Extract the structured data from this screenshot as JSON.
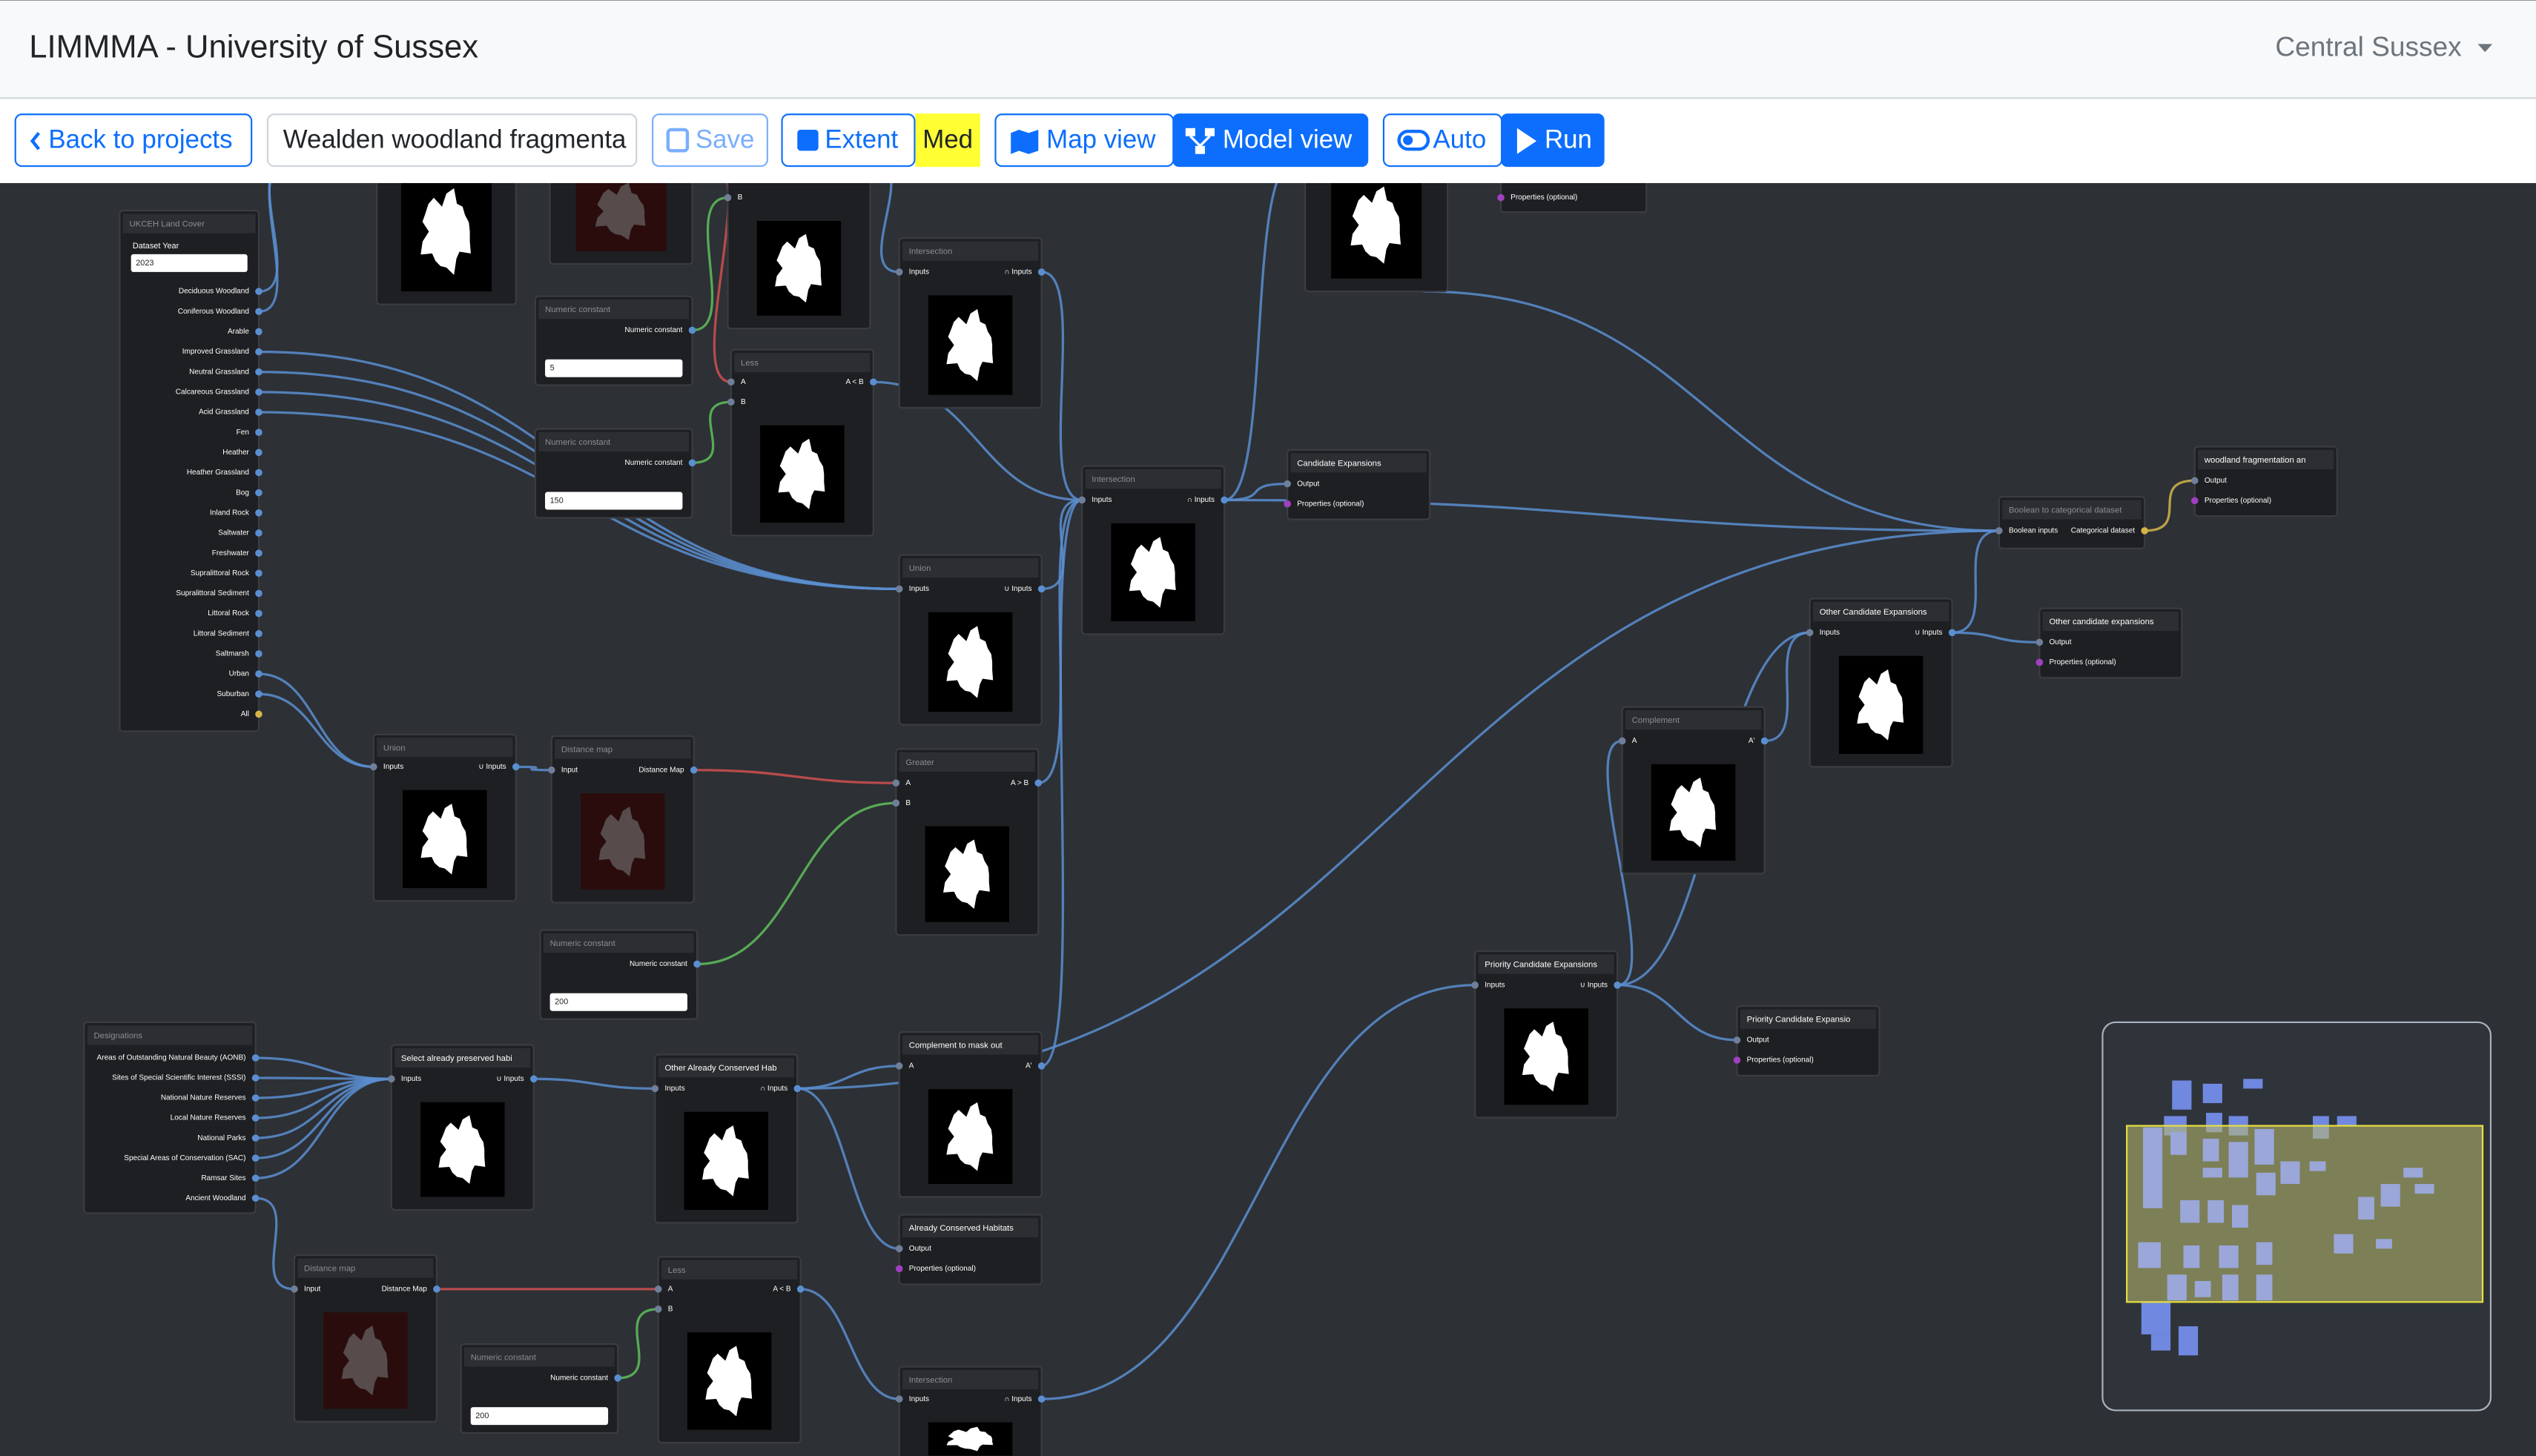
{
  "header": {
    "title": "LIMMMA - University of Sussex",
    "region": "Central Sussex"
  },
  "toolbar": {
    "back": "Back to projects",
    "project_name": "Wealden woodland fragmenta",
    "save": "Save",
    "extent": "Extent",
    "quality": "Med",
    "map_view": "Map view",
    "model_view": "Model view",
    "auto": "Auto",
    "run": "Run"
  },
  "nodes": [
    {
      "title": "UKCEH Land Cover",
      "field_label": "Dataset Year",
      "value": "2023",
      "inputs": [],
      "outputs": [
        "Deciduous Woodland",
        "Coniferous Woodland",
        "Arable",
        "Improved Grassland",
        "Neutral Grassland",
        "Calcareous Grassland",
        "Acid Grassland",
        "Fen",
        "Heather",
        "Heather Grassland",
        "Bog",
        "Inland Rock",
        "Saltwater",
        "Freshwater",
        "Supralittoral Rock",
        "Supralittoral Sediment",
        "Littoral Rock",
        "Littoral Sediment",
        "Saltmarsh",
        "Urban",
        "Suburban",
        "All"
      ]
    },
    {
      "inputs": [
        "B"
      ],
      "outputs": []
    },
    {
      "title": "Numeric constant",
      "inputs": [],
      "outputs": [
        "Numeric constant"
      ],
      "value": "5"
    },
    {
      "title": "Less",
      "inputs": [
        "A",
        "B"
      ],
      "outputs": [
        "A < B"
      ]
    },
    {
      "title": "Intersection",
      "inputs": [
        "Inputs"
      ],
      "outputs": [
        "∩ Inputs"
      ]
    },
    {
      "title": "Numeric constant",
      "inputs": [],
      "outputs": [
        "Numeric constant"
      ],
      "value": "150"
    },
    {
      "title": "Intersection",
      "inputs": [
        "Inputs"
      ],
      "outputs": [
        "∩ Inputs"
      ]
    },
    {
      "title": "Candidate Expansions",
      "inputs": [
        "Output",
        "Properties (optional)"
      ],
      "outputs": []
    },
    {
      "inputs": [
        "Properties (optional)"
      ],
      "outputs": []
    },
    {
      "title": "Union",
      "inputs": [
        "Inputs"
      ],
      "outputs": [
        "∪ Inputs"
      ]
    },
    {
      "title": "Union",
      "inputs": [
        "Inputs"
      ],
      "outputs": [
        "∪ Inputs"
      ]
    },
    {
      "title": "Distance map",
      "inputs": [
        "Input"
      ],
      "outputs": [
        "Distance Map"
      ]
    },
    {
      "title": "Greater",
      "inputs": [
        "A",
        "B"
      ],
      "outputs": [
        "A > B"
      ]
    },
    {
      "title": "Numeric constant",
      "inputs": [],
      "outputs": [
        "Numeric constant"
      ],
      "value": "200"
    },
    {
      "title": "Designations",
      "inputs": [],
      "outputs": [
        "Areas of Outstanding Natural Beauty (AONB)",
        "Sites of Special Scientific Interest (SSSI)",
        "National Nature Reserves",
        "Local Nature Reserves",
        "National Parks",
        "Special Areas of Conservation (SAC)",
        "Ramsar Sites",
        "Ancient Woodland"
      ]
    },
    {
      "title": "Select already preserved habi",
      "inputs": [
        "Inputs"
      ],
      "outputs": [
        "∪ Inputs"
      ]
    },
    {
      "title": "Other Already Conserved Hab",
      "inputs": [
        "Inputs"
      ],
      "outputs": [
        "∩ Inputs"
      ]
    },
    {
      "title": "Complement to mask out",
      "inputs": [
        "A"
      ],
      "outputs": [
        "A'"
      ]
    },
    {
      "title": "Already Conserved Habitats",
      "inputs": [
        "Output",
        "Properties (optional)"
      ],
      "outputs": []
    },
    {
      "title": "Distance map",
      "inputs": [
        "Input"
      ],
      "outputs": [
        "Distance Map"
      ]
    },
    {
      "title": "Less",
      "inputs": [
        "A",
        "B"
      ],
      "outputs": [
        "A < B"
      ]
    },
    {
      "title": "Numeric constant",
      "inputs": [],
      "outputs": [
        "Numeric constant"
      ],
      "value": "200"
    },
    {
      "title": "Intersection",
      "inputs": [
        "Inputs"
      ],
      "outputs": [
        "∩ Inputs"
      ]
    },
    {
      "title": "Priority Candidate Expansions",
      "inputs": [
        "Inputs"
      ],
      "outputs": [
        "∪ Inputs"
      ]
    },
    {
      "title": "Priority Candidate Expansio",
      "inputs": [
        "Output",
        "Properties (optional)"
      ],
      "outputs": []
    },
    {
      "title": "Complement",
      "inputs": [
        "A"
      ],
      "outputs": [
        "A'"
      ]
    },
    {
      "title": "Other Candidate Expansions",
      "inputs": [
        "Inputs"
      ],
      "outputs": [
        "∪ Inputs"
      ]
    },
    {
      "title": "Boolean to categorical dataset",
      "inputs": [
        "Boolean inputs"
      ],
      "outputs": [
        "Categorical dataset"
      ]
    },
    {
      "title": "woodland fragmentation an",
      "inputs": [
        "Output",
        "Properties (optional)"
      ],
      "outputs": []
    },
    {
      "title": "Other candidate expansions",
      "inputs": [
        "Output",
        "Properties (optional)"
      ],
      "outputs": []
    }
  ]
}
